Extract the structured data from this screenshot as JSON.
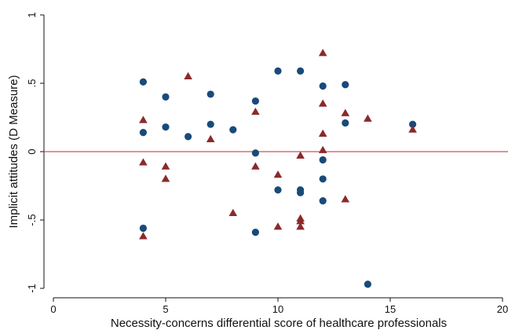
{
  "chart_data": {
    "type": "scatter",
    "xlabel": "Necessity-concerns differential score of healthcare professionals",
    "ylabel": "Implicit attitudes (D Measure)",
    "xlim": [
      0,
      20
    ],
    "ylim": [
      -1,
      1
    ],
    "x_ticks": [
      {
        "value": 0,
        "label": "0"
      },
      {
        "value": 5,
        "label": "5"
      },
      {
        "value": 10,
        "label": "10"
      },
      {
        "value": 15,
        "label": "15"
      },
      {
        "value": 20,
        "label": "20"
      }
    ],
    "y_ticks": [
      {
        "value": 1,
        "label": "1"
      },
      {
        "value": 0.5,
        "label": ".5"
      },
      {
        "value": 0,
        "label": "0"
      },
      {
        "value": -0.5,
        "label": "-.5"
      },
      {
        "value": -1,
        "label": "-1"
      }
    ],
    "reference_line": {
      "y": 0,
      "color": "#d0525c"
    },
    "grid": false,
    "legend": "none",
    "series": [
      {
        "marker": "circle",
        "color": "#1a4a7a",
        "points": [
          [
            4,
            0.51
          ],
          [
            4,
            0.14
          ],
          [
            4,
            -0.56
          ],
          [
            5,
            0.4
          ],
          [
            5,
            0.18
          ],
          [
            6,
            0.11
          ],
          [
            7,
            0.42
          ],
          [
            7,
            0.2
          ],
          [
            8,
            0.16
          ],
          [
            9,
            0.37
          ],
          [
            9,
            -0.01
          ],
          [
            9,
            -0.59
          ],
          [
            10,
            0.59
          ],
          [
            10,
            -0.28
          ],
          [
            11,
            0.59
          ],
          [
            11,
            -0.28
          ],
          [
            11,
            -0.3
          ],
          [
            12,
            0.48
          ],
          [
            12,
            -0.06
          ],
          [
            12,
            -0.2
          ],
          [
            12,
            -0.36
          ],
          [
            13,
            0.49
          ],
          [
            13,
            0.21
          ],
          [
            14,
            -0.97
          ],
          [
            16,
            0.2
          ]
        ]
      },
      {
        "marker": "triangle",
        "color": "#8b2a2a",
        "points": [
          [
            4,
            0.23
          ],
          [
            4,
            -0.08
          ],
          [
            4,
            -0.62
          ],
          [
            5,
            -0.11
          ],
          [
            5,
            -0.2
          ],
          [
            6,
            0.55
          ],
          [
            7,
            0.09
          ],
          [
            8,
            -0.45
          ],
          [
            9,
            0.29
          ],
          [
            9,
            -0.11
          ],
          [
            10,
            -0.17
          ],
          [
            10,
            -0.55
          ],
          [
            11,
            -0.03
          ],
          [
            11,
            -0.49
          ],
          [
            11,
            -0.51
          ],
          [
            11,
            -0.55
          ],
          [
            12,
            0.72
          ],
          [
            12,
            0.35
          ],
          [
            12,
            0.13
          ],
          [
            12,
            0.01
          ],
          [
            13,
            0.28
          ],
          [
            13,
            -0.35
          ],
          [
            14,
            0.24
          ],
          [
            16,
            0.16
          ]
        ]
      }
    ]
  }
}
